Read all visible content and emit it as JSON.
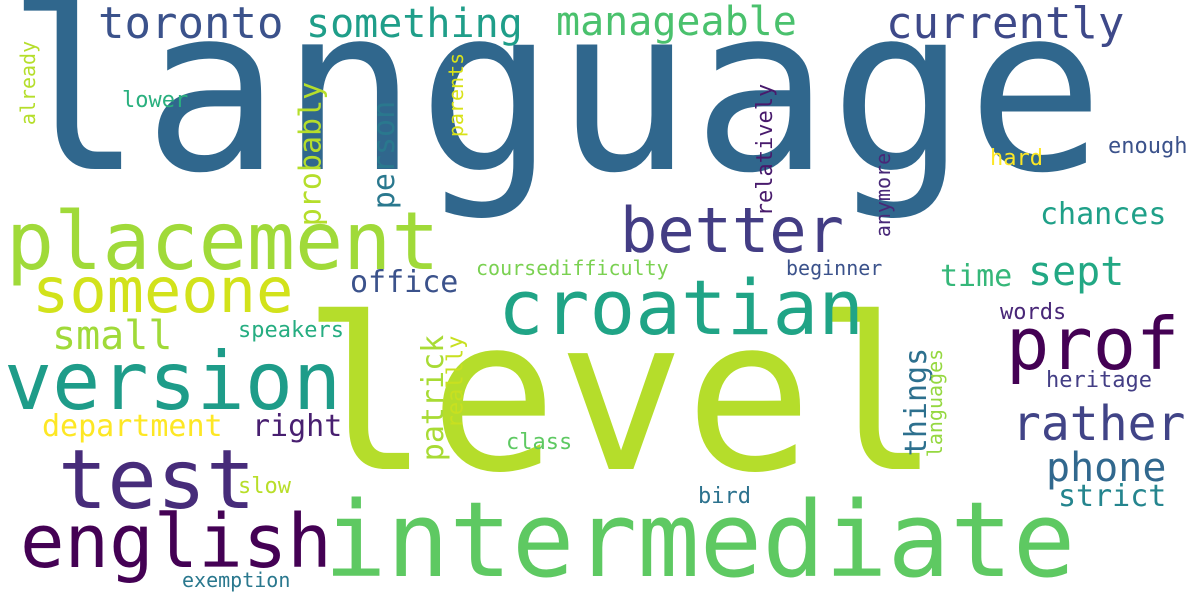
{
  "words": [
    {
      "text": "language",
      "color": "#30678d"
    },
    {
      "text": "level",
      "color": "#b5dd2b"
    },
    {
      "text": "intermediate",
      "color": "#5ec962"
    },
    {
      "text": "placement",
      "color": "#a0da39"
    },
    {
      "text": "croatian",
      "color": "#20a486"
    },
    {
      "text": "version",
      "color": "#1e9c89"
    },
    {
      "text": "someone",
      "color": "#d2e21b"
    },
    {
      "text": "test",
      "color": "#472c7a"
    },
    {
      "text": "english",
      "color": "#440154"
    },
    {
      "text": "better",
      "color": "#433d84"
    },
    {
      "text": "prof",
      "color": "#440154"
    },
    {
      "text": "toronto",
      "color": "#3b528b"
    },
    {
      "text": "something",
      "color": "#1f9e89"
    },
    {
      "text": "manageable",
      "color": "#4ac16d"
    },
    {
      "text": "currently",
      "color": "#3e4989"
    },
    {
      "text": "rather",
      "color": "#414487"
    },
    {
      "text": "phone",
      "color": "#31688e"
    },
    {
      "text": "sept",
      "color": "#22a884"
    },
    {
      "text": "small",
      "color": "#a0da39"
    },
    {
      "text": "department",
      "color": "#fde725"
    },
    {
      "text": "right",
      "color": "#481f70"
    },
    {
      "text": "office",
      "color": "#3b528b"
    },
    {
      "text": "time",
      "color": "#35b779"
    },
    {
      "text": "chances",
      "color": "#1fa088"
    },
    {
      "text": "strict",
      "color": "#25858e"
    },
    {
      "text": "heritage",
      "color": "#433e85"
    },
    {
      "text": "words",
      "color": "#482677"
    },
    {
      "text": "speakers",
      "color": "#26ad81"
    },
    {
      "text": "coursedifficulty",
      "color": "#7ad151"
    },
    {
      "text": "beginner",
      "color": "#3b528b"
    },
    {
      "text": "class",
      "color": "#5ec962"
    },
    {
      "text": "bird",
      "color": "#2c728e"
    },
    {
      "text": "slow",
      "color": "#b8de29"
    },
    {
      "text": "exemption",
      "color": "#2a788e"
    },
    {
      "text": "lower",
      "color": "#2ab07f"
    },
    {
      "text": "hard",
      "color": "#fde725"
    },
    {
      "text": "enough",
      "color": "#3b528b"
    },
    {
      "text": "patrick",
      "color": "#a8db34"
    },
    {
      "text": "person",
      "color": "#2a788e"
    },
    {
      "text": "probably",
      "color": "#b5de2b"
    },
    {
      "text": "reallly",
      "color": "#c8e020"
    },
    {
      "text": "things",
      "color": "#2d708e"
    },
    {
      "text": "languages",
      "color": "#95d840"
    },
    {
      "text": "relatively",
      "color": "#481a6c"
    },
    {
      "text": "anymore",
      "color": "#482878"
    },
    {
      "text": "parents",
      "color": "#d8e219"
    },
    {
      "text": "already",
      "color": "#b5de2b"
    }
  ]
}
